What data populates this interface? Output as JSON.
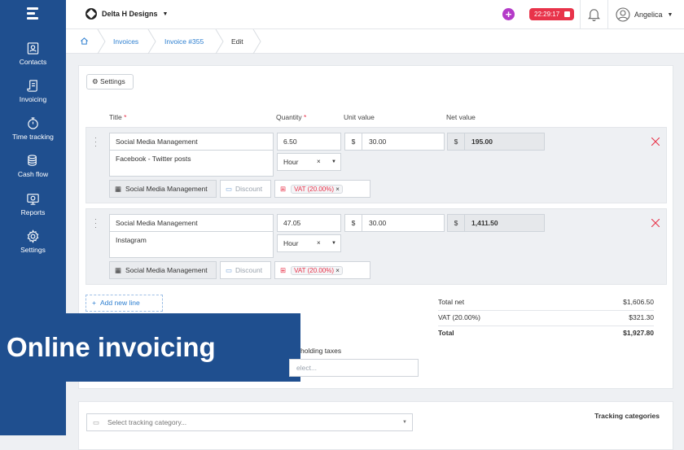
{
  "organization": {
    "name": "Delta H Designs"
  },
  "timer": {
    "value": "22:29:17"
  },
  "user": {
    "name": "Angelica"
  },
  "sidebar": {
    "items": [
      {
        "label": "Contacts",
        "icon": "contacts-icon"
      },
      {
        "label": "Invoicing",
        "icon": "invoice-icon"
      },
      {
        "label": "Time tracking",
        "icon": "stopwatch-icon"
      },
      {
        "label": "Cash flow",
        "icon": "coins-icon"
      },
      {
        "label": "Reports",
        "icon": "reports-icon"
      },
      {
        "label": "Settings",
        "icon": "gear-icon"
      }
    ]
  },
  "breadcrumb": {
    "items": [
      "Invoices",
      "Invoice #355",
      "Edit"
    ]
  },
  "settings_button": "Settings",
  "columns": {
    "title": "Title",
    "quantity": "Quantity",
    "unit_value": "Unit value",
    "net_value": "Net value",
    "required_mark": "*"
  },
  "lines": [
    {
      "title": "Social Media Management",
      "description": "Facebook - Twitter posts",
      "quantity": "6.50",
      "unit": "Hour",
      "currency": "$",
      "unit_value": "30.00",
      "net_value": "195.00",
      "category": "Social Media Management",
      "discount": "Discount",
      "tax": "VAT (20.00%)"
    },
    {
      "title": "Social Media Management",
      "description": "Instagram",
      "quantity": "47.05",
      "unit": "Hour",
      "currency": "$",
      "unit_value": "30.00",
      "net_value": "1,411.50",
      "category": "Social Media Management",
      "discount": "Discount",
      "tax": "VAT (20.00%)"
    }
  ],
  "add_line": "Add new line",
  "totals": {
    "net_label": "Total net",
    "net_value": "$1,606.50",
    "vat_label": "VAT (20.00%)",
    "vat_value": "$321.30",
    "total_label": "Total",
    "total_value": "$1,927.80"
  },
  "banner": {
    "text": "Online invoicing"
  },
  "withholding": {
    "label": "holding taxes",
    "placeholder": "elect..."
  },
  "tracking": {
    "placeholder": "Select tracking category...",
    "title": "Tracking categories"
  },
  "colors": {
    "sidebar": "#1f4f8f",
    "accent": "#2d7fd0",
    "timer": "#e8334a",
    "plus": "#b43ac8"
  }
}
